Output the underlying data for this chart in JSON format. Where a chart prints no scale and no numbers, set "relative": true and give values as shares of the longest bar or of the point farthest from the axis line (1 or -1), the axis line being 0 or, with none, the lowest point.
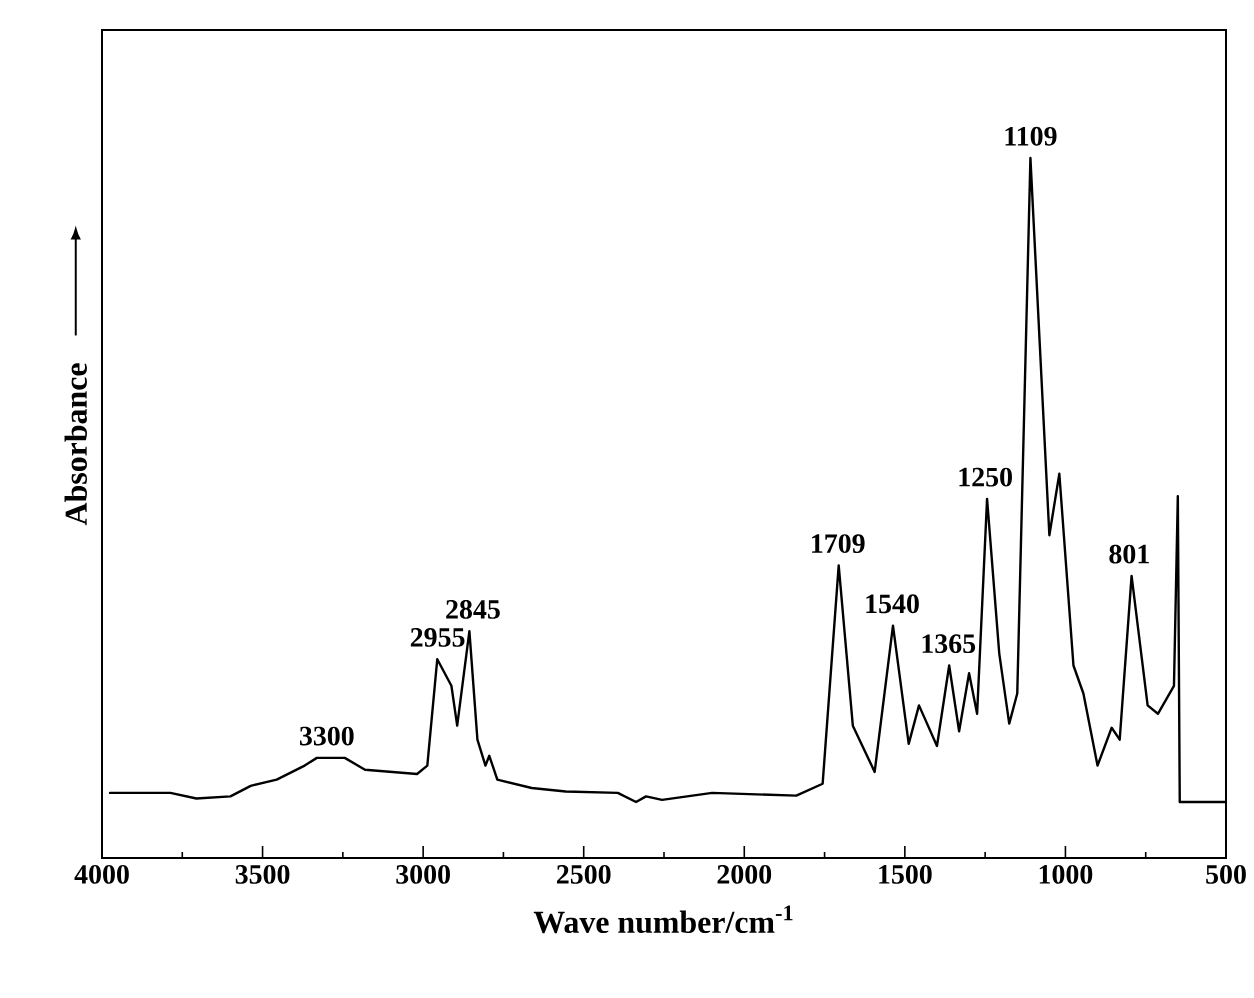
{
  "chart_data": {
    "type": "line",
    "relative": true,
    "xlabel": "Wave number/cm$^{-1}$",
    "ylabel": "Absorbance",
    "xlim": [
      4000,
      500
    ],
    "xticks": [
      4000,
      3500,
      3000,
      2500,
      2000,
      1500,
      1000,
      500
    ],
    "tick_labels": "x",
    "marker": "none",
    "line_style": "solid",
    "series": [
      {
        "color": "#000000",
        "x": [
          3975,
          3787,
          3706,
          3600,
          3537,
          3456,
          3369,
          3331,
          3244,
          3181,
          3100,
          3019,
          2987,
          2956,
          2912,
          2894,
          2856,
          2831,
          2806,
          2794,
          2769,
          2662,
          2556,
          2394,
          2337,
          2306,
          2256,
          2100,
          1838,
          1756,
          1706,
          1662,
          1594,
          1537,
          1488,
          1456,
          1400,
          1362,
          1331,
          1300,
          1275,
          1244,
          1206,
          1175,
          1150,
          1109,
          1050,
          1019,
          975,
          944,
          900,
          856,
          831,
          794,
          744,
          712,
          662,
          650,
          644,
          500
        ],
        "values": [
          0.093,
          0.093,
          0.085,
          0.088,
          0.103,
          0.112,
          0.132,
          0.143,
          0.143,
          0.126,
          0.123,
          0.12,
          0.132,
          0.284,
          0.246,
          0.189,
          0.324,
          0.169,
          0.132,
          0.146,
          0.112,
          0.1,
          0.095,
          0.093,
          0.08,
          0.088,
          0.083,
          0.093,
          0.089,
          0.106,
          0.418,
          0.189,
          0.123,
          0.332,
          0.163,
          0.218,
          0.16,
          0.275,
          0.181,
          0.264,
          0.206,
          0.513,
          0.292,
          0.192,
          0.235,
          1.0,
          0.461,
          0.549,
          0.275,
          0.235,
          0.132,
          0.186,
          0.169,
          0.403,
          0.218,
          0.206,
          0.246,
          0.517,
          0.08,
          0.08
        ]
      }
    ],
    "annotations": [
      {
        "text": "3300",
        "x": 3300,
        "y": 0.143
      },
      {
        "text": "2955",
        "x": 2955,
        "y": 0.284
      },
      {
        "text": "2845",
        "x": 2845,
        "y": 0.324
      },
      {
        "text": "1709",
        "x": 1709,
        "y": 0.418
      },
      {
        "text": "1540",
        "x": 1540,
        "y": 0.332
      },
      {
        "text": "1365",
        "x": 1365,
        "y": 0.275
      },
      {
        "text": "1250",
        "x": 1250,
        "y": 0.513
      },
      {
        "text": "1109",
        "x": 1109,
        "y": 1.0
      },
      {
        "text": "801",
        "x": 801,
        "y": 0.403
      }
    ]
  }
}
